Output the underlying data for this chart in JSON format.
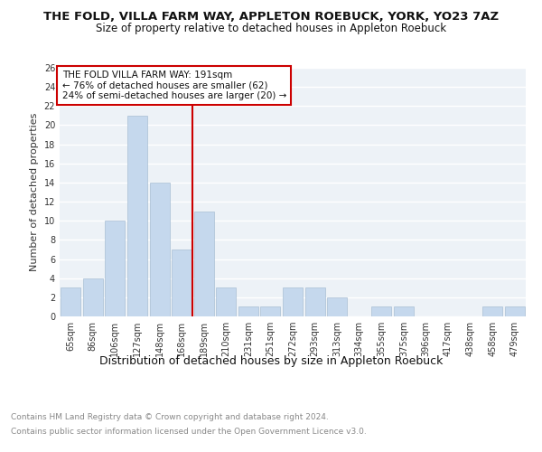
{
  "title": "THE FOLD, VILLA FARM WAY, APPLETON ROEBUCK, YORK, YO23 7AZ",
  "subtitle": "Size of property relative to detached houses in Appleton Roebuck",
  "xlabel": "Distribution of detached houses by size in Appleton Roebuck",
  "ylabel": "Number of detached properties",
  "categories": [
    "65sqm",
    "86sqm",
    "106sqm",
    "127sqm",
    "148sqm",
    "168sqm",
    "189sqm",
    "210sqm",
    "231sqm",
    "251sqm",
    "272sqm",
    "293sqm",
    "313sqm",
    "334sqm",
    "355sqm",
    "375sqm",
    "396sqm",
    "417sqm",
    "438sqm",
    "458sqm",
    "479sqm"
  ],
  "values": [
    3,
    4,
    10,
    21,
    14,
    7,
    11,
    3,
    1,
    1,
    3,
    3,
    2,
    0,
    1,
    1,
    0,
    0,
    0,
    1,
    1
  ],
  "bar_color": "#c5d8ed",
  "bar_edge_color": "#aabfd4",
  "vline_color": "#cc0000",
  "vline_index": 6,
  "annotation_text": "THE FOLD VILLA FARM WAY: 191sqm\n← 76% of detached houses are smaller (62)\n24% of semi-detached houses are larger (20) →",
  "annotation_box_color": "#cc0000",
  "ylim": [
    0,
    26
  ],
  "yticks": [
    0,
    2,
    4,
    6,
    8,
    10,
    12,
    14,
    16,
    18,
    20,
    22,
    24,
    26
  ],
  "footer_line1": "Contains HM Land Registry data © Crown copyright and database right 2024.",
  "footer_line2": "Contains public sector information licensed under the Open Government Licence v3.0.",
  "bg_color": "#edf2f7",
  "grid_color": "#ffffff",
  "title_fontsize": 9.5,
  "subtitle_fontsize": 8.5,
  "xlabel_fontsize": 9,
  "ylabel_fontsize": 8,
  "tick_fontsize": 7,
  "annotation_fontsize": 7.5,
  "footer_fontsize": 6.5
}
